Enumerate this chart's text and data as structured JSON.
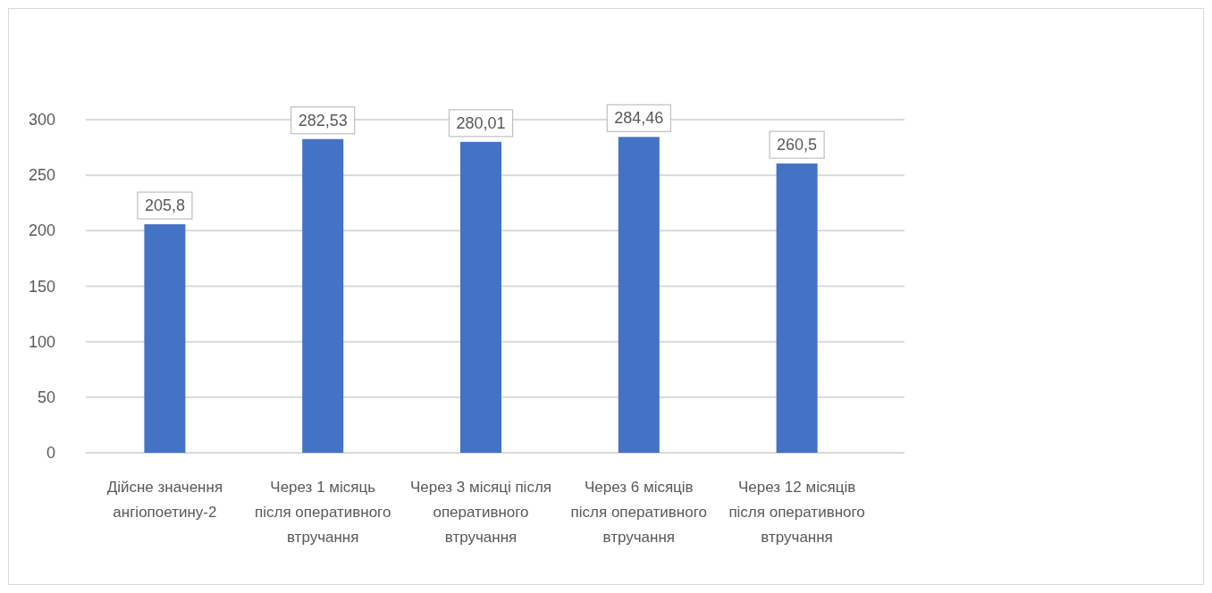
{
  "chart_data": {
    "type": "bar",
    "categories": [
      "Дійсне значення ангіопоетину-2",
      "Через 1 місяць після оперативного втручання",
      "Через 3 місяці після оперативного втручання",
      "Через 6 місяців після оперативного втручання",
      "Через 12 місяців після оперативного втручання"
    ],
    "values": [
      205.8,
      282.53,
      280.01,
      284.46,
      260.5
    ],
    "value_labels": [
      "205,8",
      "282,53",
      "280,01",
      "284,46",
      "260,5"
    ],
    "color": "#4472c4",
    "ylim": [
      0,
      300
    ],
    "yticks": [
      0,
      50,
      100,
      150,
      200,
      250,
      300
    ],
    "grid": "y"
  }
}
